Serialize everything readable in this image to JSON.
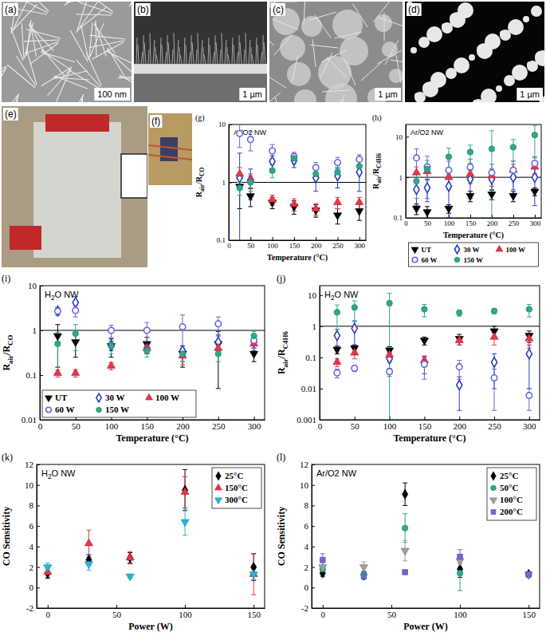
{
  "images": [
    {
      "label": "(a)",
      "scale_bar": "100 nm"
    },
    {
      "label": "(b)",
      "scale_bar": "1 µm"
    },
    {
      "label": "(c)",
      "scale_bar": "1 µm"
    },
    {
      "label": "(d)",
      "scale_bar": "1 µm"
    },
    {
      "label": "(e)"
    },
    {
      "label": "(f)"
    }
  ],
  "chart_data": [
    {
      "type": "scatter",
      "panel": "(g)",
      "annotation": [
        {
          "text": "Ar/O2 NW"
        }
      ],
      "xlabel": "Temperature (°C)",
      "ylabel": [
        {
          "text": "R"
        },
        {
          "sub": "air"
        },
        {
          "text": "/R"
        },
        {
          "sub": "CO"
        }
      ],
      "log": "y",
      "xlim": [
        0,
        315
      ],
      "xticks": [
        0,
        50,
        100,
        150,
        200,
        250,
        300
      ],
      "ylim": [
        0.1,
        10
      ],
      "yticks": [
        0.1,
        1,
        10
      ],
      "hline": 1,
      "x": [
        25,
        50,
        100,
        150,
        200,
        250,
        300
      ],
      "series": [
        {
          "color": "#000000",
          "marker": "triangle-down",
          "values": [
            0.85,
            0.58,
            0.45,
            0.38,
            0.33,
            0.27,
            0.32
          ],
          "errors": [
            0.5,
            0.2,
            0.1,
            0.1,
            0.08,
            0.08,
            0.1
          ]
        },
        {
          "color": "#2a3fc4",
          "marker": "diamond-open",
          "values": [
            1.2,
            1.1,
            2.3,
            2.4,
            1.2,
            1.3,
            1.5
          ],
          "errors": [
            2.0,
            0.6,
            0.6,
            0.6,
            0.5,
            0.5,
            0.8
          ]
        },
        {
          "color": "#e8354a",
          "marker": "triangle-up",
          "values": [
            1.4,
            1.1,
            0.5,
            0.42,
            0.35,
            0.45,
            0.45
          ],
          "errors": [
            0.4,
            0.3,
            0.1,
            0.1,
            0.08,
            0.1,
            0.1
          ]
        },
        {
          "color": "#6666dd",
          "marker": "circle-open",
          "values": [
            7,
            5.5,
            3.5,
            2.8,
            1.8,
            2.2,
            2.5
          ],
          "errors": [
            3,
            2,
            1,
            0.5,
            0.4,
            0.5,
            0.5
          ]
        },
        {
          "color": "#2ea88a",
          "marker": "circle",
          "values": [
            0.8,
            1.0,
            1.6,
            2.6,
            1.4,
            1.5,
            1.9
          ],
          "errors": [
            0.2,
            0.3,
            0.4,
            0.5,
            0.3,
            0.3,
            0.4
          ]
        }
      ]
    },
    {
      "type": "scatter",
      "panel": "(h)",
      "annotation": [
        {
          "text": "Ar/O2 NW"
        }
      ],
      "xlabel": "Temperature (°C)",
      "ylabel": [
        {
          "text": "R"
        },
        {
          "sub": "air"
        },
        {
          "text": "/R"
        },
        {
          "sub": "C4H6"
        }
      ],
      "log": "y",
      "xlim": [
        0,
        315
      ],
      "xticks": [
        0,
        50,
        100,
        150,
        200,
        250,
        300
      ],
      "ylim": [
        0.1,
        20
      ],
      "yticks": [
        0.1,
        1,
        10
      ],
      "hline": 1,
      "legend": "bottom",
      "x": [
        25,
        50,
        100,
        150,
        200,
        250,
        300
      ],
      "series": [
        {
          "name": "UT",
          "color": "#000000",
          "marker": "triangle-down",
          "values": [
            0.17,
            0.14,
            0.17,
            0.35,
            0.38,
            0.35,
            0.45
          ],
          "errors": [
            0.05,
            0.05,
            0.04,
            0.1,
            0.1,
            0.1,
            0.1
          ]
        },
        {
          "name": "30 W",
          "color": "#2a3fc4",
          "marker": "diamond-open",
          "values": [
            0.5,
            0.55,
            0.6,
            0.9,
            0.9,
            1.0,
            1.0
          ],
          "errors": [
            0.3,
            0.3,
            0.5,
            0.6,
            0.5,
            0.6,
            0.8
          ]
        },
        {
          "name": "100 W",
          "color": "#e8354a",
          "marker": "triangle-up",
          "values": [
            1.3,
            1.4,
            1.0,
            1.2,
            1.1,
            1.5,
            1.8
          ],
          "errors": [
            0.5,
            0.5,
            0.4,
            0.5,
            0.5,
            0.6,
            0.6
          ]
        },
        {
          "name": "60 W",
          "color": "#6666dd",
          "marker": "circle-open",
          "values": [
            3,
            1.8,
            1.5,
            1.8,
            1.3,
            1.5,
            2.2
          ],
          "errors": [
            2,
            1.5,
            1,
            1,
            0.8,
            1,
            1
          ]
        },
        {
          "name": "150 W",
          "color": "#2ea88a",
          "marker": "circle",
          "values": [
            0.8,
            1.6,
            3.2,
            4.2,
            5.0,
            5.5,
            11
          ],
          "errors": [
            0.5,
            1.0,
            2,
            2,
            9,
            3,
            8
          ]
        }
      ]
    },
    {
      "type": "scatter",
      "panel": "(i)",
      "annotation": [
        {
          "text": "H"
        },
        {
          "sub": "2"
        },
        {
          "text": "O NW"
        }
      ],
      "xlabel": "Temperature (°C)",
      "ylabel": [
        {
          "text": "R"
        },
        {
          "sub": "air"
        },
        {
          "text": "/R"
        },
        {
          "sub": "CO"
        }
      ],
      "log": "y",
      "xlim": [
        0,
        315
      ],
      "xticks": [
        0,
        50,
        100,
        150,
        200,
        250,
        300
      ],
      "ylim": [
        0.01,
        10
      ],
      "yticks": [
        0.01,
        0.1,
        1,
        10
      ],
      "hline": 1,
      "legend": "lower left",
      "x": [
        25,
        50,
        100,
        150,
        200,
        250,
        300
      ],
      "series": [
        {
          "name": "UT",
          "color": "#000000",
          "marker": "triangle-down",
          "values": [
            0.75,
            0.55,
            0.45,
            0.5,
            0.3,
            0.5,
            0.3
          ],
          "errors": [
            0.6,
            0.3,
            0.2,
            0.2,
            0.15,
            0.45,
            0.1
          ]
        },
        {
          "name": "30 W",
          "color": "#2a3fc4",
          "marker": "diamond-open",
          "values": [
            2.7,
            4.2,
            0.45,
            0.4,
            0.35,
            0.55,
            0.55
          ],
          "errors": [
            0.5,
            1.5,
            0.1,
            0.1,
            0.1,
            0.2,
            0.2
          ]
        },
        {
          "name": "100 W",
          "color": "#e8354a",
          "marker": "triangle-up",
          "values": [
            0.11,
            0.11,
            0.16,
            0.4,
            0.27,
            0.4,
            0.5
          ],
          "errors": [
            0.02,
            0.02,
            0.03,
            0.1,
            0.1,
            0.1,
            0.1
          ]
        },
        {
          "name": "60 W",
          "color": "#6666dd",
          "marker": "circle-open",
          "values": [
            2.7,
            2.8,
            1.0,
            1.0,
            1.2,
            1.4,
            0.6
          ],
          "errors": [
            0.5,
            0.8,
            0.3,
            0.5,
            1.0,
            0.6,
            0.2
          ]
        },
        {
          "name": "150 W",
          "color": "#2ea88a",
          "marker": "circle",
          "values": [
            0.5,
            0.85,
            0.45,
            0.35,
            0.3,
            0.3,
            0.75
          ],
          "errors": [
            0.4,
            0.5,
            0.15,
            0.1,
            0.1,
            0.1,
            0.2
          ]
        }
      ]
    },
    {
      "type": "scatter",
      "panel": "(j)",
      "annotation": [
        {
          "text": "H"
        },
        {
          "sub": "2"
        },
        {
          "text": "O NW"
        }
      ],
      "xlabel": "Temperature (°C)",
      "ylabel": [
        {
          "text": "R"
        },
        {
          "sub": "air"
        },
        {
          "text": "/R"
        },
        {
          "sub": "C4H6"
        }
      ],
      "log": "y",
      "xlim": [
        0,
        315
      ],
      "xticks": [
        0,
        50,
        100,
        150,
        200,
        250,
        300
      ],
      "ylim": [
        0.001,
        20
      ],
      "yticks": [
        0.001,
        0.01,
        0.1,
        1,
        10
      ],
      "hline": 1,
      "x": [
        25,
        50,
        100,
        150,
        200,
        250,
        300
      ],
      "series": [
        {
          "color": "#000000",
          "marker": "triangle-down",
          "values": [
            0.18,
            0.2,
            0.17,
            0.35,
            0.4,
            0.7,
            0.5
          ],
          "errors": [
            0.05,
            0.05,
            0.05,
            0.1,
            0.15,
            0.3,
            0.2
          ]
        },
        {
          "color": "#2a3fc4",
          "marker": "diamond-open",
          "values": [
            0.5,
            0.85,
            0.09,
            0.07,
            0.013,
            0.07,
            0.13
          ],
          "errors": [
            0.3,
            0.6,
            0.05,
            0.04,
            0.011,
            0.06,
            0.12
          ]
        },
        {
          "color": "#e8354a",
          "marker": "triangle-up",
          "values": [
            0.07,
            0.14,
            0.12,
            0.08,
            0.35,
            0.45,
            0.4
          ],
          "errors": [
            0.02,
            0.05,
            0.05,
            0.03,
            0.1,
            0.2,
            0.2
          ]
        },
        {
          "color": "#6666dd",
          "marker": "circle-open",
          "values": [
            0.032,
            0.045,
            0.035,
            0.06,
            0.05,
            0.022,
            0.006
          ],
          "errors": [
            0.01,
            0.01,
            0.01,
            0.04,
            0.03,
            0.02,
            0.004
          ]
        },
        {
          "color": "#2ea88a",
          "marker": "circle",
          "values": [
            2.8,
            4.0,
            5.5,
            3.5,
            2.7,
            3.1,
            3.5
          ],
          "errors": [
            2,
            2.5,
            6,
            1.5,
            0.6,
            0.6,
            1.5
          ]
        }
      ]
    },
    {
      "type": "scatter",
      "panel": "(k)",
      "annotation": [
        {
          "text": "H"
        },
        {
          "sub": "2"
        },
        {
          "text": "O NW"
        }
      ],
      "xlabel": "Power (W)",
      "ylabel": [
        {
          "text": "CO Sensitivity"
        }
      ],
      "xlim": [
        -8,
        158
      ],
      "xticks": [
        0,
        50,
        100,
        150
      ],
      "ylim": [
        -2,
        12
      ],
      "yticks": [
        -2,
        0,
        2,
        4,
        6,
        8,
        10,
        12
      ],
      "legend": "upper right",
      "x": [
        0,
        30,
        60,
        100,
        150
      ],
      "series": [
        {
          "name": "25°C",
          "color": "#000000",
          "marker": "diamond",
          "values": [
            1.4,
            2.7,
            2.9,
            9.5,
            2.0
          ],
          "errors": [
            0.5,
            0.5,
            0.5,
            2.0,
            1.3
          ]
        },
        {
          "name": "150°C",
          "color": "#e8354a",
          "marker": "triangle-up",
          "values": [
            1.5,
            4.3,
            2.9,
            9.3,
            1.3
          ],
          "errors": [
            0.5,
            1.3,
            0.6,
            1.5,
            2.0
          ]
        },
        {
          "name": "300°C",
          "color": "#22b8d8",
          "marker": "triangle-down",
          "values": [
            2.0,
            2.3,
            1.1,
            6.4,
            1.3
          ],
          "errors": [
            0.4,
            0.6,
            0.2,
            1.3,
            0.5
          ]
        }
      ]
    },
    {
      "type": "scatter",
      "panel": "(l)",
      "annotation": [
        {
          "text": "Ar/O2 NW"
        }
      ],
      "xlabel": "Power (W)",
      "ylabel": [
        {
          "text": "CO Sensitivity"
        }
      ],
      "xlim": [
        -8,
        158
      ],
      "xticks": [
        0,
        50,
        100,
        150
      ],
      "ylim": [
        -2,
        12
      ],
      "yticks": [
        -2,
        0,
        2,
        4,
        6,
        8,
        10,
        12
      ],
      "legend": "upper right",
      "x": [
        0,
        30,
        60,
        100,
        150
      ],
      "series": [
        {
          "name": "25°C",
          "color": "#000000",
          "marker": "diamond",
          "values": [
            1.4,
            1.2,
            9.1,
            1.8,
            1.3
          ],
          "errors": [
            0.3,
            0.3,
            1.1,
            0.8,
            0.2
          ]
        },
        {
          "name": "50°C",
          "color": "#2ea88a",
          "marker": "circle",
          "values": [
            1.8,
            1.3,
            5.8,
            1.4,
            1.2
          ],
          "errors": [
            0.3,
            0.3,
            1.4,
            1.7,
            0.2
          ]
        },
        {
          "name": "100°C",
          "color": "#a0a0a0",
          "marker": "triangle-down",
          "values": [
            2.0,
            2.0,
            3.6,
            2.6,
            1.3
          ],
          "errors": [
            0.4,
            0.5,
            1.0,
            0.6,
            0.2
          ]
        },
        {
          "name": "200°C",
          "color": "#6b6bd6",
          "marker": "square",
          "values": [
            2.7,
            1.1,
            1.5,
            3.0,
            1.3
          ],
          "errors": [
            0.6,
            0.3,
            0.2,
            0.7,
            0.2
          ]
        }
      ]
    }
  ]
}
